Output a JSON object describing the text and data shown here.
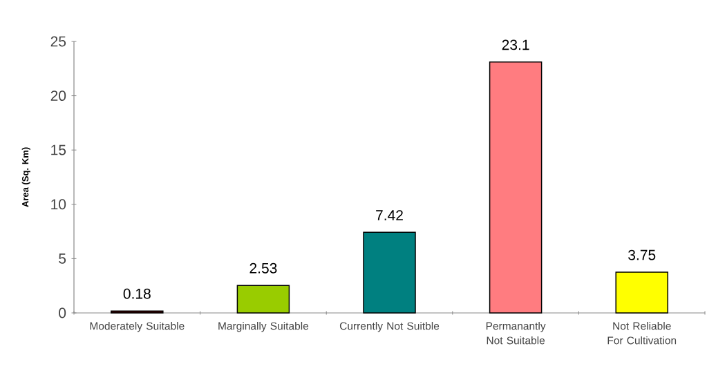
{
  "chart_data": {
    "type": "bar",
    "ylabel": "Area (Sq. Km)",
    "categories": [
      "Moderately Suitable",
      "Marginally Suitable",
      "Currently Not Suitble",
      "Permanantly Not Suitable",
      "Not Reliable For Cultivation"
    ],
    "values": [
      0.18,
      2.53,
      7.42,
      23.1,
      3.75
    ],
    "colors": [
      "#400000",
      "#99cc00",
      "#008080",
      "#ff7c80",
      "#ffff00"
    ],
    "ylim": [
      0,
      25
    ],
    "yticks": [
      0,
      5,
      10,
      15,
      20,
      25
    ],
    "grid": false,
    "data_labels": true
  }
}
